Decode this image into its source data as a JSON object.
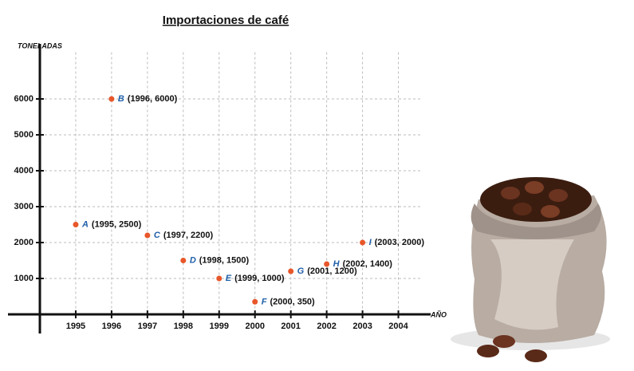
{
  "chart_data": {
    "type": "scatter",
    "title": "Importaciones de café",
    "y_label": "TONELADAS",
    "x_label": "AÑO",
    "x": [
      1995,
      1996,
      1997,
      1998,
      1999,
      2000,
      2001,
      2002,
      2003
    ],
    "values": [
      2500,
      6000,
      2200,
      1500,
      1000,
      350,
      1200,
      1400,
      2000
    ],
    "names": [
      "A",
      "B",
      "C",
      "D",
      "E",
      "F",
      "G",
      "H",
      "I"
    ],
    "value_labels": [
      "(1995, 2500)",
      "(1996, 6000)",
      "(1997, 2200)",
      "(1998, 1500)",
      "(1999, 1000)",
      "(2000, 350)",
      "(2001, 1200)",
      "(2002, 1400)",
      "(2003, 2000)"
    ],
    "color": "#e8572a",
    "name_color": "#1f5fa8",
    "xlim": [
      1994,
      2004.9
    ],
    "xticks": [
      1995,
      1996,
      1997,
      1998,
      1999,
      2000,
      2001,
      2002,
      2003,
      2004
    ],
    "ylim": [
      0,
      7300
    ],
    "yticks": [
      1000,
      2000,
      3000,
      4000,
      5000,
      6000
    ],
    "grid": true
  }
}
